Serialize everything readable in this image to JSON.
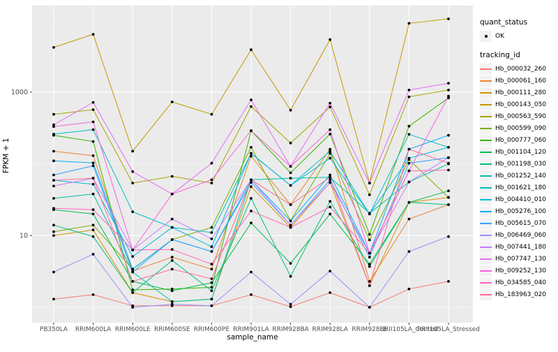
{
  "chart_data": {
    "type": "line",
    "title": "",
    "xlabel": "sample_name",
    "ylabel": "FPKM + 1",
    "y_scale": "log10",
    "ylim": [
      1,
      16000
    ],
    "y_ticks": [
      {
        "label": "1000",
        "value": 1000
      },
      {
        "label": "10",
        "value": 10
      }
    ],
    "y_gridlines_minor": [
      10000,
      100,
      1
    ],
    "grid": true,
    "legend_position": "right",
    "legend": {
      "quant_status": {
        "title": "quant_status",
        "items": [
          "OK"
        ]
      },
      "tracking_id": {
        "title": "tracking_id"
      }
    },
    "categories": [
      "PB350LA",
      "RRIM600LA",
      "RRIM600LE",
      "RRIM600SE",
      "RRIM600PE",
      "RRIM901LA",
      "RRIM928BA",
      "RRIM928LA",
      "RRIM928LE",
      "RRII105LA_Control",
      "RRII105LA_Stressed"
    ],
    "point_color": "#000000",
    "series": [
      {
        "name": "Hb_000032_260",
        "color": "#F8766D",
        "values": [
          1.3,
          1.5,
          1.05,
          1.05,
          1.05,
          1.5,
          1.02,
          1.6,
          1.0,
          1.8,
          2.3
        ]
      },
      {
        "name": "Hb_000061_160",
        "color": "#EA8331",
        "values": [
          150,
          130,
          3.2,
          5.0,
          3.4,
          128,
          27,
          160,
          2.3,
          17,
          27
        ]
      },
      {
        "name": "Hb_000111_280",
        "color": "#D89000",
        "values": [
          10,
          12,
          1.6,
          1.2,
          1.3,
          48,
          13,
          55,
          2.0,
          29,
          34
        ]
      },
      {
        "name": "Hb_000143_050",
        "color": "#C09B00",
        "values": [
          4200,
          6400,
          150,
          730,
          490,
          3900,
          560,
          5400,
          54,
          9100,
          10500
        ]
      },
      {
        "name": "Hb_000563_590",
        "color": "#A3A500",
        "values": [
          490,
          570,
          54,
          67,
          54,
          630,
          195,
          620,
          37,
          860,
          1070
        ]
      },
      {
        "name": "Hb_000599_090",
        "color": "#7CAE00",
        "values": [
          11.3,
          14,
          3.4,
          8.8,
          13,
          170,
          16,
          140,
          8.7,
          115,
          34
        ]
      },
      {
        "name": "Hb_000777_060",
        "color": "#39B600",
        "values": [
          250,
          205,
          1.75,
          1.8,
          1.9,
          290,
          75,
          260,
          10.4,
          335,
          830
        ]
      },
      {
        "name": "Hb_001104_120",
        "color": "#00BB4E",
        "values": [
          23,
          20,
          2.3,
          1.7,
          2.2,
          15,
          4.1,
          20,
          4.0,
          29,
          42
        ]
      },
      {
        "name": "Hb_001198_030",
        "color": "#00BF7D",
        "values": [
          14,
          9.7,
          1.6,
          4.5,
          1.7,
          33,
          2.7,
          30,
          3.7,
          29,
          27
        ]
      },
      {
        "name": "Hb_001252_140",
        "color": "#00C1A3",
        "values": [
          33,
          38,
          3.1,
          1.2,
          1.3,
          60,
          63,
          65,
          20.5,
          56,
          100
        ]
      },
      {
        "name": "Hb_001621_180",
        "color": "#00BFC4",
        "values": [
          260,
          300,
          21.5,
          13,
          11,
          140,
          50,
          150,
          20,
          258,
          170
        ]
      },
      {
        "name": "Hb_004410_010",
        "color": "#00BAE0",
        "values": [
          59,
          52,
          5.1,
          13,
          7,
          140,
          50,
          120,
          20,
          120,
          170
        ]
      },
      {
        "name": "Hb_005276_100",
        "color": "#00B0F6",
        "values": [
          110,
          103,
          3.4,
          8.8,
          6,
          60,
          16,
          70,
          5.7,
          160,
          250
        ]
      },
      {
        "name": "Hb_005615_070",
        "color": "#35A2FF",
        "values": [
          70,
          94,
          3.1,
          8.8,
          6,
          55,
          14,
          60,
          5.0,
          102,
          122
        ]
      },
      {
        "name": "Hb_006469_060",
        "color": "#9590FF",
        "values": [
          3.1,
          5.5,
          1.0,
          1.1,
          1.05,
          3.1,
          1.1,
          3.2,
          1.0,
          6.0,
          9.7
        ]
      },
      {
        "name": "Hb_007441_180",
        "color": "#C77CFF",
        "values": [
          49,
          63,
          6.3,
          17,
          9,
          60,
          14,
          55,
          5.7,
          56,
          122
        ]
      },
      {
        "name": "Hb_007747_130",
        "color": "#E76BF3",
        "values": [
          350,
          720,
          78,
          38,
          102,
          780,
          92,
          700,
          54,
          1070,
          1330
        ]
      },
      {
        "name": "Hb_009252_130",
        "color": "#FA62DB",
        "values": [
          330,
          385,
          6.3,
          38,
          60,
          290,
          92,
          300,
          5.7,
          80,
          880
        ]
      },
      {
        "name": "Hb_034585_040",
        "color": "#FF62BC",
        "values": [
          24,
          23,
          6.3,
          6.4,
          4,
          22,
          13,
          25,
          5.7,
          80,
          82
        ]
      },
      {
        "name": "Hb_183963_020",
        "color": "#FF6A98",
        "values": [
          59,
          63,
          2.3,
          3.4,
          2.5,
          60,
          27,
          65,
          2.0,
          160,
          102
        ]
      }
    ]
  }
}
